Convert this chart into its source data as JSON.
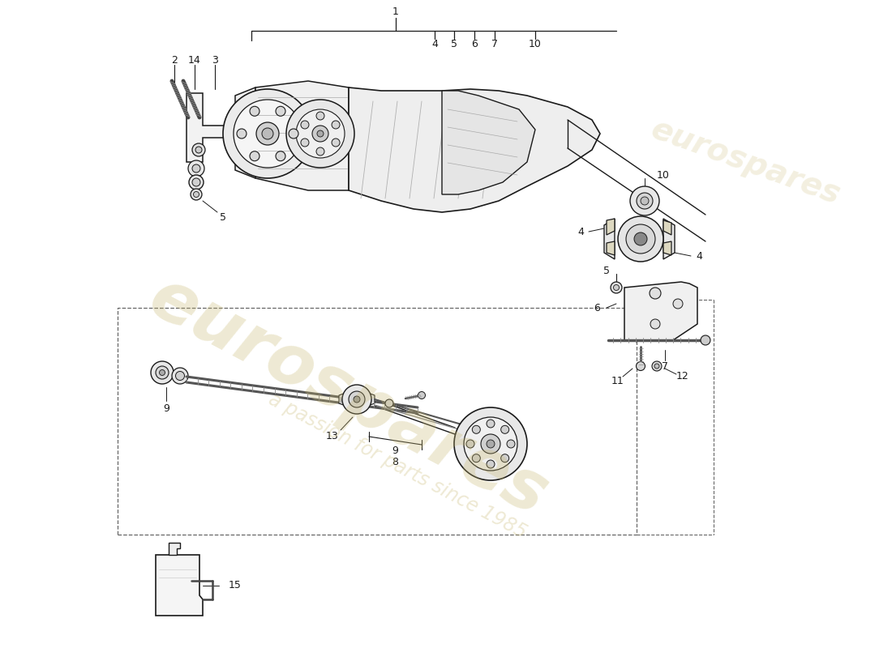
{
  "bg": "#ffffff",
  "lc": "#1a1a1a",
  "wm1": "eurospares",
  "wm2": "a passion for parts since 1985",
  "wm_color": "#c8b870",
  "wm_alpha": 0.3
}
